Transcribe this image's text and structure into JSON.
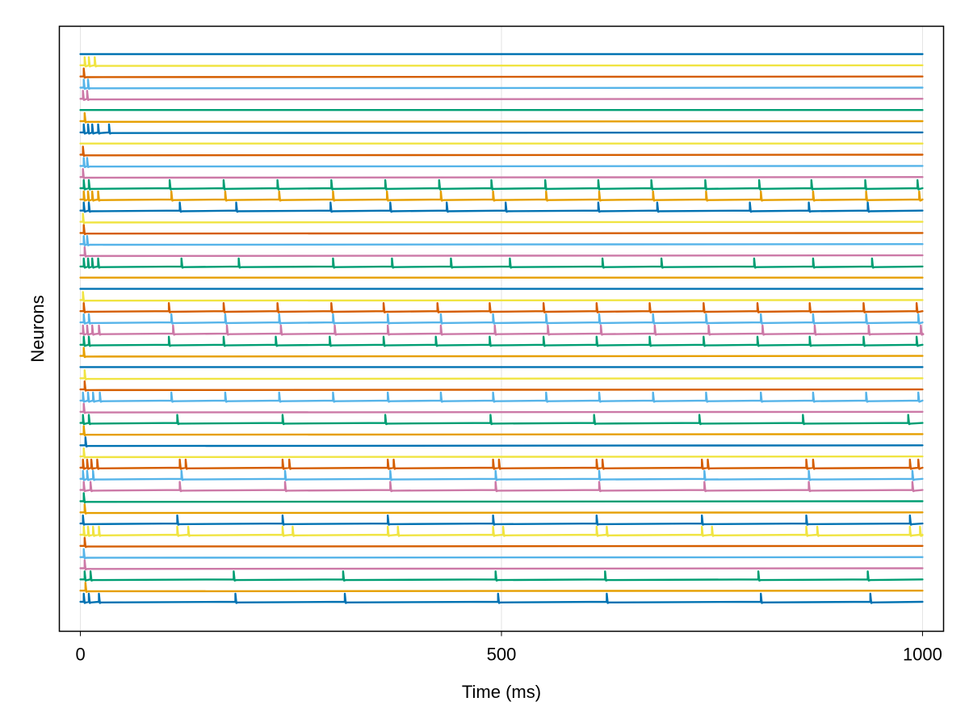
{
  "chart_data": {
    "type": "line",
    "title": "",
    "xlabel": "Time (ms)",
    "ylabel": "Neurons",
    "xlim": [
      -25,
      1025
    ],
    "x_ticks": [
      0,
      500,
      1000
    ],
    "x_tick_labels": [
      "0",
      "500",
      "1000"
    ],
    "y_ticks_shown": false,
    "grid": "vertical at x ticks",
    "legend": "none",
    "trace_kind": "membrane potential traces, one row per neuron, spikes drawn as short vertical deflections",
    "palette": [
      "#0072B2",
      "#E69F00",
      "#009E73",
      "#CC79A7",
      "#56B4E9",
      "#D55E00",
      "#F0E442"
    ],
    "series": [
      {
        "color": "#0072B2",
        "spikes_ms": [
          4,
          10,
          22,
          184,
          314,
          496,
          625,
          808,
          938
        ]
      },
      {
        "color": "#E69F00",
        "spikes_ms": [
          6
        ]
      },
      {
        "color": "#009E73",
        "spikes_ms": [
          5,
          12,
          182,
          312,
          493,
          623,
          805,
          935
        ]
      },
      {
        "color": "#CC79A7",
        "spikes_ms": [
          5
        ]
      },
      {
        "color": "#56B4E9",
        "spikes_ms": [
          4
        ]
      },
      {
        "color": "#D55E00",
        "spikes_ms": [
          5
        ]
      },
      {
        "color": "#F0E442",
        "spikes_ms": [
          4,
          9,
          15,
          22,
          115,
          128,
          240,
          252,
          365,
          377,
          490,
          502,
          613,
          625,
          738,
          750,
          862,
          875,
          985,
          997
        ]
      },
      {
        "color": "#0072B2",
        "spikes_ms": [
          3,
          115,
          240,
          365,
          490,
          613,
          738,
          862,
          985
        ]
      },
      {
        "color": "#E69F00",
        "spikes_ms": [
          5
        ]
      },
      {
        "color": "#009E73",
        "spikes_ms": [
          4
        ]
      },
      {
        "color": "#CC79A7",
        "spikes_ms": [
          4,
          12,
          118,
          243,
          368,
          493,
          616,
          741,
          865,
          988
        ]
      },
      {
        "color": "#56B4E9",
        "spikes_ms": [
          3,
          8,
          15,
          120,
          243,
          368,
          493,
          616,
          741,
          865,
          988
        ]
      },
      {
        "color": "#D55E00",
        "spikes_ms": [
          3,
          8,
          13,
          20,
          118,
          125,
          240,
          248,
          365,
          372,
          490,
          497,
          613,
          620,
          738,
          745,
          862,
          870,
          985,
          995
        ]
      },
      {
        "color": "#F0E442",
        "spikes_ms": [
          4
        ]
      },
      {
        "color": "#0072B2",
        "spikes_ms": [
          6
        ]
      },
      {
        "color": "#E69F00",
        "spikes_ms": [
          4
        ]
      },
      {
        "color": "#009E73",
        "spikes_ms": [
          3,
          10,
          115,
          240,
          362,
          487,
          610,
          735,
          858,
          983
        ]
      },
      {
        "color": "#CC79A7",
        "spikes_ms": [
          4
        ]
      },
      {
        "color": "#56B4E9",
        "spikes_ms": [
          3,
          9,
          15,
          23,
          108,
          172,
          236,
          300,
          365,
          428,
          490,
          553,
          616,
          680,
          743,
          808,
          870,
          933,
          995
        ]
      },
      {
        "color": "#D55E00",
        "spikes_ms": [
          5
        ]
      },
      {
        "color": "#F0E442",
        "spikes_ms": [
          5
        ]
      },
      {
        "color": "#0072B2",
        "spikes_ms": []
      },
      {
        "color": "#E69F00",
        "spikes_ms": [
          4
        ]
      },
      {
        "color": "#009E73",
        "spikes_ms": [
          4,
          10,
          105,
          170,
          232,
          296,
          360,
          422,
          486,
          550,
          613,
          676,
          740,
          804,
          866,
          930,
          993
        ]
      },
      {
        "color": "#CC79A7",
        "spikes_ms": [
          3,
          8,
          14,
          22,
          110,
          174,
          238,
          302,
          365,
          428,
          492,
          555,
          618,
          682,
          746,
          810,
          872,
          936,
          998
        ]
      },
      {
        "color": "#56B4E9",
        "spikes_ms": [
          4,
          10,
          108,
          172,
          236,
          300,
          365,
          428,
          490,
          553,
          616,
          680,
          743,
          808,
          870,
          933,
          995
        ]
      },
      {
        "color": "#D55E00",
        "spikes_ms": [
          4,
          105,
          170,
          234,
          298,
          360,
          424,
          486,
          550,
          613,
          676,
          740,
          804,
          866,
          930,
          993
        ]
      },
      {
        "color": "#F0E442",
        "spikes_ms": [
          3
        ]
      },
      {
        "color": "#0072B2",
        "spikes_ms": []
      },
      {
        "color": "#E69F00",
        "spikes_ms": []
      },
      {
        "color": "#009E73",
        "spikes_ms": [
          4,
          9,
          14,
          21,
          120,
          188,
          300,
          370,
          440,
          510,
          620,
          690,
          800,
          870,
          940
        ]
      },
      {
        "color": "#CC79A7",
        "spikes_ms": [
          5
        ]
      },
      {
        "color": "#56B4E9",
        "spikes_ms": [
          4,
          8
        ]
      },
      {
        "color": "#D55E00",
        "spikes_ms": [
          4
        ]
      },
      {
        "color": "#F0E442",
        "spikes_ms": [
          3
        ]
      },
      {
        "color": "#0072B2",
        "spikes_ms": [
          4,
          10,
          118,
          185,
          297,
          368,
          435,
          505,
          615,
          685,
          795,
          865,
          935
        ]
      },
      {
        "color": "#E69F00",
        "spikes_ms": [
          4,
          9,
          14,
          21,
          108,
          172,
          236,
          300,
          364,
          428,
          490,
          553,
          616,
          680,
          743,
          808,
          870,
          933,
          996
        ]
      },
      {
        "color": "#009E73",
        "spikes_ms": [
          4,
          10,
          106,
          170,
          234,
          298,
          362,
          426,
          488,
          552,
          615,
          678,
          742,
          806,
          868,
          932,
          994
        ]
      },
      {
        "color": "#CC79A7",
        "spikes_ms": [
          3
        ]
      },
      {
        "color": "#56B4E9",
        "spikes_ms": [
          4,
          8
        ]
      },
      {
        "color": "#D55E00",
        "spikes_ms": [
          3
        ]
      },
      {
        "color": "#F0E442",
        "spikes_ms": []
      },
      {
        "color": "#0072B2",
        "spikes_ms": [
          4,
          9,
          14,
          21,
          34
        ]
      },
      {
        "color": "#E69F00",
        "spikes_ms": [
          5
        ]
      },
      {
        "color": "#009E73",
        "spikes_ms": []
      },
      {
        "color": "#CC79A7",
        "spikes_ms": [
          3,
          8
        ]
      },
      {
        "color": "#56B4E9",
        "spikes_ms": [
          4,
          9
        ]
      },
      {
        "color": "#D55E00",
        "spikes_ms": [
          4
        ]
      },
      {
        "color": "#F0E442",
        "spikes_ms": [
          5,
          10,
          17
        ]
      },
      {
        "color": "#0072B2",
        "spikes_ms": []
      }
    ]
  }
}
